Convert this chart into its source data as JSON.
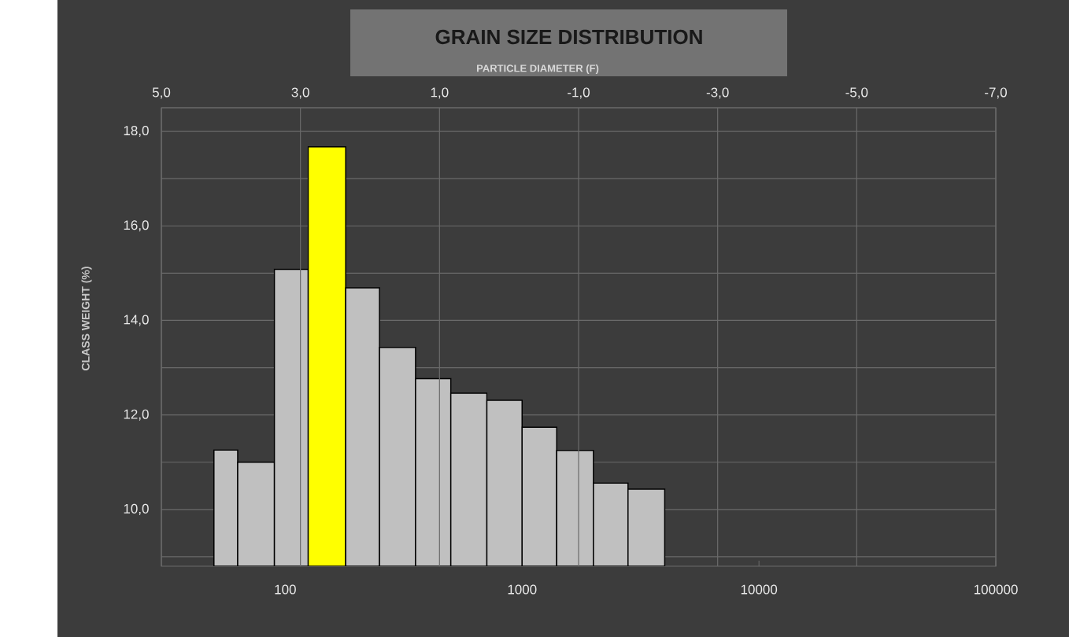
{
  "chart_data": {
    "type": "histogram",
    "title": "GRAIN SIZE DISTRIBUTION",
    "x2label": "PARTICLE DIAMETER (F)",
    "ylabel": "CLASS WEIGHT (%)",
    "bins": [
      50,
      63,
      90,
      125,
      180,
      250,
      355,
      500,
      710,
      1000,
      1400,
      2000,
      2800,
      4000
    ],
    "values": [
      11.26,
      11.0,
      15.08,
      17.67,
      14.69,
      13.43,
      12.77,
      12.46,
      12.31,
      11.74,
      11.25,
      10.56,
      10.43
    ],
    "colors": [
      "#c0c0c0",
      "#c0c0c0",
      "#c0c0c0",
      "#ffff00",
      "#c0c0c0",
      "#c0c0c0",
      "#c0c0c0",
      "#c0c0c0",
      "#c0c0c0",
      "#c0c0c0",
      "#c0c0c0",
      "#c0c0c0",
      "#c0c0c0"
    ],
    "log": "x",
    "grid": true,
    "xlim": [
      30,
      100000
    ],
    "xticks": [
      100,
      1000,
      10000,
      100000
    ],
    "x2lim": [
      5,
      -7
    ],
    "x2ticks": [
      {
        "value": 5,
        "label": "5,0"
      },
      {
        "value": 3,
        "label": "3,0"
      },
      {
        "value": 1,
        "label": "1,0"
      },
      {
        "value": -1,
        "label": "-1,0"
      },
      {
        "value": -3,
        "label": "-3,0"
      },
      {
        "value": -5,
        "label": "-5,0"
      },
      {
        "value": -7,
        "label": "-7,0"
      }
    ],
    "ylim": [
      8.8,
      18.5
    ],
    "yticks": [
      {
        "value": 9,
        "label": null
      },
      {
        "value": 10,
        "label": "10,0"
      },
      {
        "value": 11,
        "label": null
      },
      {
        "value": 12,
        "label": "12,0"
      },
      {
        "value": 13,
        "label": null
      },
      {
        "value": 14,
        "label": "14,0"
      },
      {
        "value": 15,
        "label": null
      },
      {
        "value": 16,
        "label": "16,0"
      },
      {
        "value": 17,
        "label": null
      },
      {
        "value": 18,
        "label": "18,0"
      }
    ]
  }
}
